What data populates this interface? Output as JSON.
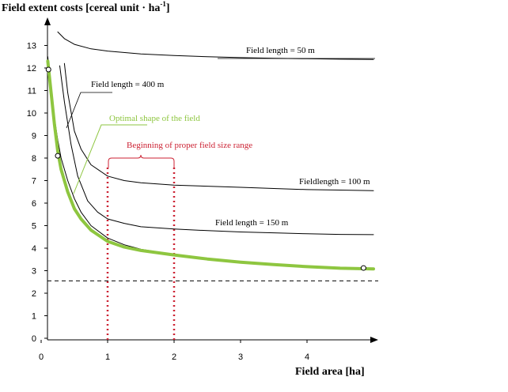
{
  "chart_data": {
    "type": "line",
    "title": "",
    "ylabel_main": "Field extent costs [cereal unit · ha",
    "ylabel_sup": "-1",
    "ylabel_end": "]",
    "xlabel": "Field area [ha]",
    "xlim": [
      0,
      5
    ],
    "ylim": [
      0,
      14
    ],
    "x_ticks": [
      "0",
      "1",
      "2",
      "3",
      "4"
    ],
    "y_ticks": [
      "0",
      "1",
      "2",
      "3",
      "4",
      "5",
      "6",
      "7",
      "8",
      "9",
      "10",
      "11",
      "12",
      "13"
    ],
    "grid": false,
    "series": [
      {
        "name": "Field length = 50 m",
        "color": "#000000",
        "points": [
          [
            0.25,
            13.6
          ],
          [
            0.35,
            13.3
          ],
          [
            0.5,
            13.05
          ],
          [
            0.75,
            12.85
          ],
          [
            1.0,
            12.75
          ],
          [
            1.5,
            12.62
          ],
          [
            2.0,
            12.55
          ],
          [
            2.5,
            12.5
          ],
          [
            3.0,
            12.46
          ],
          [
            3.5,
            12.43
          ],
          [
            4.0,
            12.41
          ],
          [
            4.5,
            12.39
          ],
          [
            5.0,
            12.38
          ]
        ]
      },
      {
        "name": "Fieldlength = 100 m",
        "color": "#000000",
        "points": [
          [
            0.35,
            12.2
          ],
          [
            0.4,
            10.9
          ],
          [
            0.5,
            9.2
          ],
          [
            0.6,
            8.4
          ],
          [
            0.75,
            7.7
          ],
          [
            1.0,
            7.2
          ],
          [
            1.25,
            7.0
          ],
          [
            1.5,
            6.9
          ],
          [
            2.0,
            6.8
          ],
          [
            2.5,
            6.75
          ],
          [
            3.0,
            6.7
          ],
          [
            3.5,
            6.65
          ],
          [
            4.0,
            6.6
          ],
          [
            4.5,
            6.58
          ],
          [
            5.0,
            6.55
          ]
        ]
      },
      {
        "name": "Field length = 150 m",
        "color": "#000000",
        "points": [
          [
            0.28,
            12.1
          ],
          [
            0.35,
            10.5
          ],
          [
            0.45,
            8.6
          ],
          [
            0.55,
            7.2
          ],
          [
            0.7,
            6.1
          ],
          [
            0.85,
            5.6
          ],
          [
            1.0,
            5.3
          ],
          [
            1.25,
            5.1
          ],
          [
            1.5,
            4.95
          ],
          [
            2.0,
            4.85
          ],
          [
            2.5,
            4.78
          ],
          [
            3.0,
            4.72
          ],
          [
            3.5,
            4.68
          ],
          [
            4.0,
            4.64
          ],
          [
            4.5,
            4.61
          ],
          [
            5.0,
            4.6
          ]
        ]
      },
      {
        "name": "Fieldlength = 400 m",
        "color": "#000000",
        "points": [
          [
            0.1,
            12.5
          ],
          [
            0.15,
            11.0
          ],
          [
            0.2,
            9.8
          ],
          [
            0.25,
            8.8
          ],
          [
            0.3,
            8.0
          ],
          [
            0.4,
            7.0
          ],
          [
            0.5,
            6.2
          ],
          [
            0.6,
            5.6
          ],
          [
            0.75,
            5.0
          ],
          [
            1.0,
            4.45
          ],
          [
            1.25,
            4.15
          ],
          [
            1.5,
            3.95
          ],
          [
            2.0,
            3.72
          ],
          [
            2.5,
            3.52
          ],
          [
            3.0,
            3.38
          ],
          [
            3.5,
            3.27
          ],
          [
            4.0,
            3.19
          ],
          [
            4.5,
            3.12
          ],
          [
            5.0,
            3.08
          ]
        ]
      },
      {
        "name": "Optimal shape of the field",
        "color": "#8ec640",
        "points": [
          [
            0.1,
            12.3
          ],
          [
            0.15,
            10.9
          ],
          [
            0.2,
            9.5
          ],
          [
            0.25,
            8.3
          ],
          [
            0.3,
            7.5
          ],
          [
            0.4,
            6.5
          ],
          [
            0.5,
            5.75
          ],
          [
            0.6,
            5.3
          ],
          [
            0.75,
            4.8
          ],
          [
            1.0,
            4.3
          ],
          [
            1.25,
            4.05
          ],
          [
            1.5,
            3.9
          ],
          [
            2.0,
            3.7
          ],
          [
            2.5,
            3.52
          ],
          [
            3.0,
            3.38
          ],
          [
            3.5,
            3.27
          ],
          [
            4.0,
            3.18
          ],
          [
            4.5,
            3.11
          ],
          [
            5.0,
            3.08
          ]
        ]
      }
    ],
    "markers": [
      [
        0.11,
        11.93
      ],
      [
        0.25,
        8.1
      ],
      [
        4.85,
        3.12
      ]
    ],
    "reference_line": {
      "y": 2.55,
      "style": "dashed",
      "color": "#000000"
    },
    "range_lines": {
      "x": [
        1,
        2
      ],
      "color": "#cc2233",
      "style": "dotted"
    },
    "annotations": [
      {
        "text": "Field length = 50 m",
        "color": "#000000"
      },
      {
        "text": "Field length = 400 m",
        "color": "#000000"
      },
      {
        "text": "Optimal shape of the field",
        "color": "#8ec640"
      },
      {
        "text": "Beginning of proper field size range",
        "color": "#cc2233"
      },
      {
        "text": "Fieldlength = 100 m",
        "color": "#000000"
      },
      {
        "text": "Field length = 150 m",
        "color": "#000000"
      }
    ]
  }
}
